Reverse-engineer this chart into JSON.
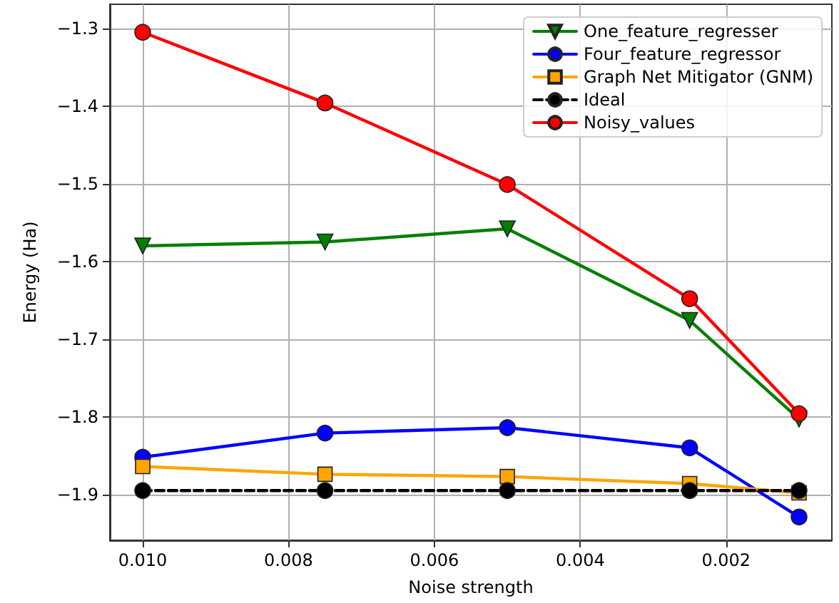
{
  "chart_data": {
    "type": "line",
    "xlabel": "Noise strength",
    "ylabel": "Energy (Ha)",
    "x": [
      0.01,
      0.0075,
      0.005,
      0.0025,
      0.001
    ],
    "xlim": [
      0.01045,
      0.00055
    ],
    "xticks": [
      {
        "value": 0.01,
        "label": "0.010"
      },
      {
        "value": 0.008,
        "label": "0.008"
      },
      {
        "value": 0.006,
        "label": "0.006"
      },
      {
        "value": 0.004,
        "label": "0.004"
      },
      {
        "value": 0.002,
        "label": "0.002"
      }
    ],
    "ylim": [
      -1.959,
      -1.269
    ],
    "yticks": [
      {
        "value": -1.9,
        "label": "−1.9"
      },
      {
        "value": -1.8,
        "label": "−1.8"
      },
      {
        "value": -1.7,
        "label": "−1.7"
      },
      {
        "value": -1.6,
        "label": "−1.6"
      },
      {
        "value": -1.5,
        "label": "−1.5"
      },
      {
        "value": -1.4,
        "label": "−1.4"
      },
      {
        "value": -1.3,
        "label": "−1.3"
      }
    ],
    "grid": true,
    "legend": "top right",
    "line_style": "solid",
    "series": [
      {
        "name": "One_feature_regresser",
        "color": "#008000",
        "marker": "triangle",
        "values": [
          -1.58,
          -1.575,
          -1.558,
          -1.676,
          -1.803
        ]
      },
      {
        "name": "Four_feature_regressor",
        "color": "#0000ff",
        "marker": "circle",
        "values": [
          -1.852,
          -1.821,
          -1.814,
          -1.84,
          -1.929
        ]
      },
      {
        "name": "Graph Net Mitigator (GNM)",
        "color": "#ffa500",
        "marker": "square",
        "values": [
          -1.864,
          -1.874,
          -1.877,
          -1.886,
          -1.898
        ]
      },
      {
        "name": "Ideal",
        "color": "#000000",
        "marker": "circle",
        "line_style": "dashed",
        "values": [
          -1.895,
          -1.895,
          -1.895,
          -1.895,
          -1.895
        ]
      },
      {
        "name": "Noisy_values",
        "color": "#ff0000",
        "marker": "circle",
        "values": [
          -1.305,
          -1.396,
          -1.501,
          -1.648,
          -1.796
        ]
      }
    ]
  }
}
